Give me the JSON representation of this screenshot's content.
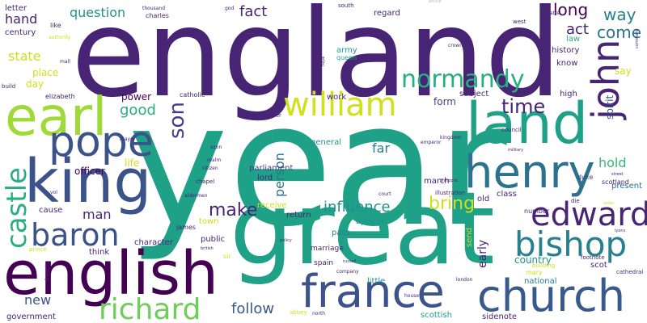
{
  "palette": {
    "darkpurple": "#440154",
    "indigo": "#482475",
    "purple": "#433e85",
    "slate": "#3b528b",
    "blue": "#38598c",
    "steel": "#2c728e",
    "teal": "#27808e",
    "cyan": "#21918c",
    "jade": "#1fa187",
    "green": "#28ae80",
    "mint": "#35b779",
    "lime": "#6ece58",
    "yellowgreen": "#a0da39",
    "yellow": "#d0e11c",
    "lightgray": "#b8b8b8"
  },
  "words": [
    {
      "text": "england",
      "color": "indigo"
    },
    {
      "text": "year",
      "color": "jade"
    },
    {
      "text": "great",
      "color": "jade"
    },
    {
      "text": "earl",
      "color": "yellowgreen"
    },
    {
      "text": "king",
      "color": "slate"
    },
    {
      "text": "pope",
      "color": "slate"
    },
    {
      "text": "english",
      "color": "darkpurple"
    },
    {
      "text": "land",
      "color": "jade"
    },
    {
      "text": "henry",
      "color": "steel"
    },
    {
      "text": "church",
      "color": "blue"
    },
    {
      "text": "france",
      "color": "slate"
    },
    {
      "text": "bishop",
      "color": "teal"
    },
    {
      "text": "edward",
      "color": "indigo"
    },
    {
      "text": "william",
      "color": "yellow"
    },
    {
      "text": "richard",
      "color": "lime"
    },
    {
      "text": "baron",
      "color": "slate"
    },
    {
      "text": "castle",
      "color": "green"
    },
    {
      "text": "john",
      "color": "indigo"
    },
    {
      "text": "normandy",
      "color": "green"
    },
    {
      "text": "son",
      "color": "purple"
    },
    {
      "text": "time",
      "color": "indigo"
    },
    {
      "text": "make",
      "color": "indigo"
    },
    {
      "text": "bring",
      "color": "yellow"
    },
    {
      "text": "influence",
      "color": "cyan"
    },
    {
      "text": "follow",
      "color": "blue"
    },
    {
      "text": "good",
      "color": "green"
    },
    {
      "text": "fact",
      "color": "indigo"
    },
    {
      "text": "question",
      "color": "cyan"
    },
    {
      "text": "way",
      "color": "teal"
    },
    {
      "text": "come",
      "color": "steel"
    },
    {
      "text": "act",
      "color": "indigo"
    },
    {
      "text": "long",
      "color": "darkpurple"
    },
    {
      "text": "hold",
      "color": "mint"
    },
    {
      "text": "man",
      "color": "indigo"
    },
    {
      "text": "new",
      "color": "slate"
    },
    {
      "text": "hand",
      "color": "indigo"
    },
    {
      "text": "state",
      "color": "yellow"
    },
    {
      "text": "place",
      "color": "yellow"
    },
    {
      "text": "day",
      "color": "yellow"
    },
    {
      "text": "person",
      "color": "steel"
    },
    {
      "text": "far",
      "color": "teal"
    },
    {
      "text": "early",
      "color": "indigo"
    },
    {
      "text": "country",
      "color": "cyan"
    },
    {
      "text": "spirit",
      "color": "slate"
    },
    {
      "text": "say",
      "color": "yellow"
    },
    {
      "text": "life",
      "color": "yellow"
    },
    {
      "text": "officer",
      "color": "darkpurple"
    },
    {
      "text": "cause",
      "color": "indigo"
    },
    {
      "text": "power",
      "color": "darkpurple"
    },
    {
      "text": "form",
      "color": "purple"
    },
    {
      "text": "general",
      "color": "cyan"
    },
    {
      "text": "lord",
      "color": "indigo"
    },
    {
      "text": "receive",
      "color": "yellow"
    },
    {
      "text": "return",
      "color": "indigo"
    },
    {
      "text": "parliament",
      "color": "purple"
    },
    {
      "text": "subject",
      "color": "indigo"
    },
    {
      "text": "high",
      "color": "indigo"
    },
    {
      "text": "history",
      "color": "indigo"
    },
    {
      "text": "law",
      "color": "green"
    },
    {
      "text": "know",
      "color": "indigo"
    },
    {
      "text": "present",
      "color": "steel"
    },
    {
      "text": "scotland",
      "color": "indigo"
    },
    {
      "text": "duke",
      "color": "purple"
    },
    {
      "text": "class",
      "color": "indigo"
    },
    {
      "text": "old",
      "color": "indigo"
    },
    {
      "text": "send",
      "color": "yellow"
    },
    {
      "text": "appear",
      "color": "cyan"
    },
    {
      "text": "pass",
      "color": "teal"
    },
    {
      "text": "character",
      "color": "indigo"
    },
    {
      "text": "public",
      "color": "indigo"
    },
    {
      "text": "think",
      "color": "indigo"
    },
    {
      "text": "scot",
      "color": "indigo"
    },
    {
      "text": "national",
      "color": "teal"
    },
    {
      "text": "number",
      "color": "indigo"
    },
    {
      "text": "century",
      "color": "indigo"
    },
    {
      "text": "letter",
      "color": "indigo"
    },
    {
      "text": "work",
      "color": "indigo"
    },
    {
      "text": "regard",
      "color": "indigo"
    },
    {
      "text": "army",
      "color": "jade"
    },
    {
      "text": "march",
      "color": "indigo"
    },
    {
      "text": "town",
      "color": "yellow"
    },
    {
      "text": "mary",
      "color": "yellow"
    },
    {
      "text": "government",
      "color": "indigo"
    },
    {
      "text": "scottish",
      "color": "jade"
    },
    {
      "text": "little",
      "color": "cyan"
    },
    {
      "text": "sidenote",
      "color": "indigo"
    },
    {
      "text": "spain",
      "color": "indigo"
    },
    {
      "text": "marriage",
      "color": "indigo"
    },
    {
      "text": "james",
      "color": "indigo"
    },
    {
      "text": "sir",
      "color": "yellow"
    },
    {
      "text": "charles",
      "color": "indigo"
    },
    {
      "text": "like",
      "color": "indigo"
    },
    {
      "text": "elizabeth",
      "color": "indigo"
    },
    {
      "text": "catholic",
      "color": "indigo"
    },
    {
      "text": "queen",
      "color": "jade"
    },
    {
      "text": "south",
      "color": "indigo"
    },
    {
      "text": "west",
      "color": "indigo"
    },
    {
      "text": "tower",
      "color": "indigo"
    },
    {
      "text": "council",
      "color": "indigo"
    },
    {
      "text": "cathedral",
      "color": "indigo"
    },
    {
      "text": "illustration",
      "color": "indigo"
    },
    {
      "text": "footnote",
      "color": "indigo"
    },
    {
      "text": "building",
      "color": "yellow"
    },
    {
      "text": "french",
      "color": "indigo"
    },
    {
      "text": "prince",
      "color": "yellow"
    },
    {
      "text": "abbey",
      "color": "yellow"
    },
    {
      "text": "build",
      "color": "indigo"
    },
    {
      "text": "chapel",
      "color": "indigo"
    },
    {
      "text": "court",
      "color": "indigo"
    },
    {
      "text": "die",
      "color": "indigo"
    },
    {
      "text": "company",
      "color": "indigo"
    },
    {
      "text": "thousand",
      "color": "indigo"
    },
    {
      "text": "authority",
      "color": "yellow"
    },
    {
      "text": "mall",
      "color": "indigo"
    },
    {
      "text": "theatre",
      "color": "indigo"
    },
    {
      "text": "kingdom",
      "color": "indigo"
    },
    {
      "text": "mayor",
      "color": "indigo"
    },
    {
      "text": "citizen",
      "color": "indigo"
    },
    {
      "text": "aldermen",
      "color": "indigo"
    },
    {
      "text": "crown",
      "color": "indigo"
    },
    {
      "text": "london",
      "color": "indigo"
    },
    {
      "text": "house",
      "color": "indigo"
    },
    {
      "text": "north",
      "color": "indigo"
    },
    {
      "text": "god",
      "color": "indigo"
    },
    {
      "text": "ibid",
      "color": "indigo"
    },
    {
      "text": "emperor",
      "color": "indigo"
    },
    {
      "text": "soon",
      "color": "indigo"
    },
    {
      "text": "vol",
      "color": "indigo"
    },
    {
      "text": "realm",
      "color": "indigo"
    },
    {
      "text": "article",
      "color": "lightgray"
    },
    {
      "text": "military",
      "color": "indigo"
    },
    {
      "text": "british",
      "color": "indigo"
    },
    {
      "text": "policy",
      "color": "indigo"
    },
    {
      "text": "russell",
      "color": "indigo"
    },
    {
      "text": "bishopric",
      "color": "indigo"
    },
    {
      "text": "street",
      "color": "indigo"
    },
    {
      "text": "order",
      "color": "yellow"
    },
    {
      "text": "lyons",
      "color": "indigo"
    },
    {
      "text": "commons",
      "color": "indigo"
    },
    {
      "text": "royal",
      "color": "indigo"
    },
    {
      "text": "early",
      "color": "indigo"
    }
  ]
}
